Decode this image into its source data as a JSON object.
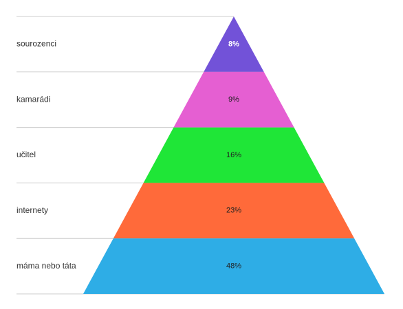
{
  "chart_data": {
    "type": "pyramid",
    "title": "",
    "categories": [
      "sourozenci",
      "kamarádi",
      "učitel",
      "internety",
      "máma nebo táta"
    ],
    "values": [
      8,
      9,
      16,
      23,
      48
    ],
    "value_labels": [
      "8%",
      "9%",
      "16%",
      "23%",
      "48%"
    ],
    "colors": [
      "#7252D8",
      "#E55FD2",
      "#1FE637",
      "#FF6A3A",
      "#2EADE6"
    ],
    "label_colors": [
      "#ffffff",
      "#222222",
      "#222222",
      "#222222",
      "#222222"
    ],
    "legend": "none"
  }
}
